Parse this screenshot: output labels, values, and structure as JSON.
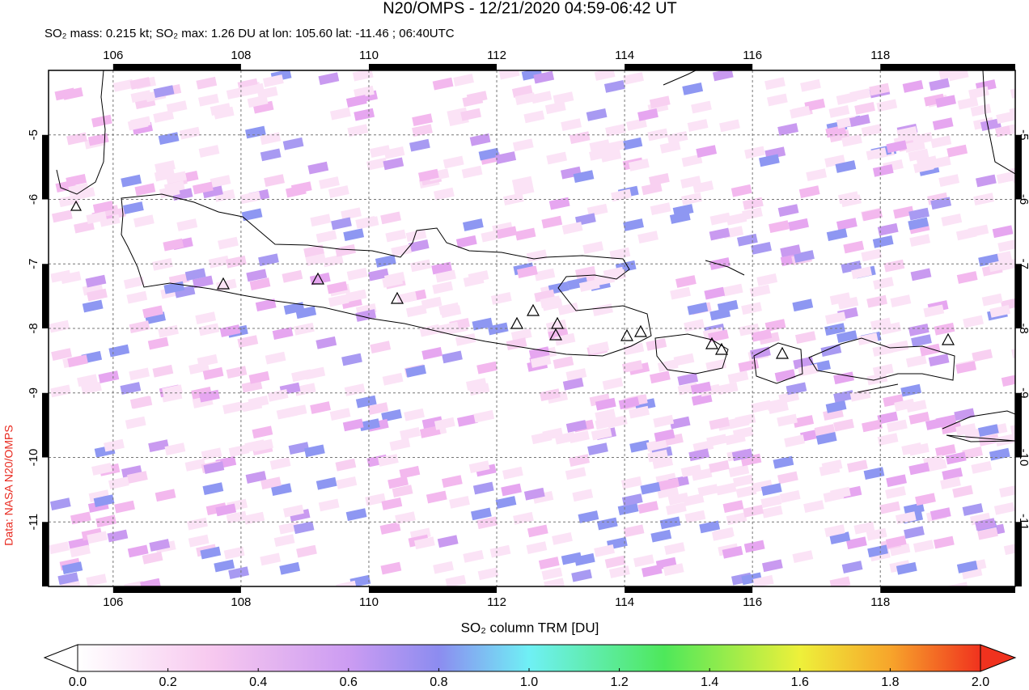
{
  "title": "N20/OMPS - 12/21/2020 04:59-06:42 UT",
  "subtitle": "SO₂ mass: 0.215 kt; SO₂ max: 1.26 DU at lon: 105.60 lat: -11.46 ; 06:40UTC",
  "credit": "Data: NASA N20/OMPS",
  "map": {
    "xlim": [
      104.99,
      120.11
    ],
    "ylim": [
      -12,
      -4
    ],
    "xticks": [
      106,
      108,
      110,
      112,
      114,
      116,
      118
    ],
    "yticks": [
      -5,
      -6,
      -7,
      -8,
      -9,
      -10,
      -11
    ]
  },
  "colorbar": {
    "label": "SO₂ column TRM [DU]",
    "lim": [
      0,
      2
    ],
    "ticks": [
      {
        "value": 0,
        "label": "0.0"
      },
      {
        "value": 0.2,
        "label": "0.2"
      },
      {
        "value": 0.4,
        "label": "0.4"
      },
      {
        "value": 0.6,
        "label": "0.6"
      },
      {
        "value": 0.8,
        "label": "0.8"
      },
      {
        "value": 1,
        "label": "1.0"
      },
      {
        "value": 1.2,
        "label": "1.2"
      },
      {
        "value": 1.4,
        "label": "1.4"
      },
      {
        "value": 1.6,
        "label": "1.6"
      },
      {
        "value": 1.8,
        "label": "1.8"
      },
      {
        "value": 2,
        "label": "2.0"
      }
    ]
  }
}
